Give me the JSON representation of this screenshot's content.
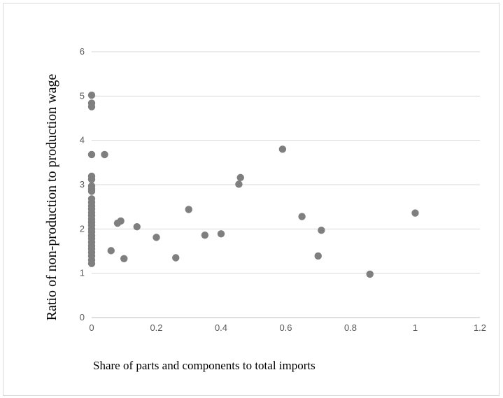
{
  "chart_data": {
    "type": "scatter",
    "title": "",
    "xlabel": "Share of parts and components to total imports",
    "ylabel": "Ratio of non-production to production wage",
    "xlim": [
      0,
      1.2
    ],
    "ylim": [
      0,
      6
    ],
    "x_ticks": [
      "0",
      "0.2",
      "0.4",
      "0.6",
      "0.8",
      "1",
      "1.2"
    ],
    "y_ticks": [
      "0",
      "1",
      "2",
      "3",
      "4",
      "5",
      "6"
    ],
    "grid": "horizontal",
    "legend": "none",
    "marker_color": "#7f7f7f",
    "points": [
      {
        "x": 0,
        "y": 5.02
      },
      {
        "x": 0,
        "y": 4.84
      },
      {
        "x": 0,
        "y": 4.76
      },
      {
        "x": 0,
        "y": 3.68
      },
      {
        "x": 0,
        "y": 3.19
      },
      {
        "x": 0,
        "y": 3.12
      },
      {
        "x": 0,
        "y": 2.97
      },
      {
        "x": 0,
        "y": 2.9
      },
      {
        "x": 0,
        "y": 2.85
      },
      {
        "x": 0,
        "y": 2.68
      },
      {
        "x": 0,
        "y": 2.6
      },
      {
        "x": 0,
        "y": 2.52
      },
      {
        "x": 0,
        "y": 2.45
      },
      {
        "x": 0,
        "y": 2.37
      },
      {
        "x": 0,
        "y": 2.3
      },
      {
        "x": 0,
        "y": 2.22
      },
      {
        "x": 0,
        "y": 2.15
      },
      {
        "x": 0,
        "y": 2.08
      },
      {
        "x": 0,
        "y": 2.0
      },
      {
        "x": 0,
        "y": 1.93
      },
      {
        "x": 0,
        "y": 1.85
      },
      {
        "x": 0,
        "y": 1.78
      },
      {
        "x": 0,
        "y": 1.7
      },
      {
        "x": 0,
        "y": 1.62
      },
      {
        "x": 0,
        "y": 1.55
      },
      {
        "x": 0,
        "y": 1.47
      },
      {
        "x": 0,
        "y": 1.39
      },
      {
        "x": 0,
        "y": 1.3
      },
      {
        "x": 0,
        "y": 1.22
      },
      {
        "x": 0.04,
        "y": 3.68
      },
      {
        "x": 0.06,
        "y": 1.51
      },
      {
        "x": 0.08,
        "y": 2.13
      },
      {
        "x": 0.09,
        "y": 2.18
      },
      {
        "x": 0.1,
        "y": 1.33
      },
      {
        "x": 0.14,
        "y": 2.05
      },
      {
        "x": 0.2,
        "y": 1.81
      },
      {
        "x": 0.26,
        "y": 1.35
      },
      {
        "x": 0.3,
        "y": 2.44
      },
      {
        "x": 0.35,
        "y": 1.86
      },
      {
        "x": 0.4,
        "y": 1.89
      },
      {
        "x": 0.455,
        "y": 3.01
      },
      {
        "x": 0.46,
        "y": 3.16
      },
      {
        "x": 0.59,
        "y": 3.8
      },
      {
        "x": 0.65,
        "y": 2.28
      },
      {
        "x": 0.7,
        "y": 1.39
      },
      {
        "x": 0.71,
        "y": 1.97
      },
      {
        "x": 0.86,
        "y": 0.98
      },
      {
        "x": 1.0,
        "y": 2.36
      }
    ]
  }
}
